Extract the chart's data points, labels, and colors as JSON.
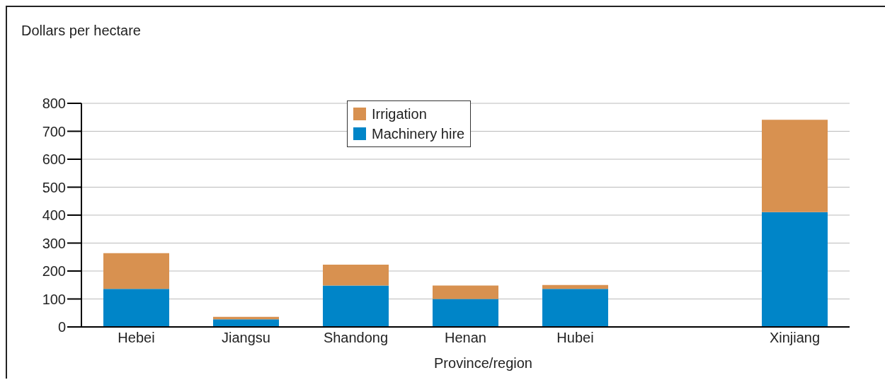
{
  "chart_data": {
    "type": "bar",
    "stacked": true,
    "ylabel": "Dollars per hectare",
    "xlabel": "Province/region",
    "categories": [
      "Hebei",
      "Jiangsu",
      "Shandong",
      "Henan",
      "Hubei",
      null,
      "Xinjiang"
    ],
    "series": [
      {
        "name": "Machinery hire",
        "color": "#0085c8",
        "values": [
          136,
          27,
          148,
          100,
          136,
          null,
          411
        ]
      },
      {
        "name": "Irrigation",
        "color": "#d89150",
        "values": [
          128,
          9,
          75,
          48,
          14,
          null,
          330
        ]
      }
    ],
    "ylim": [
      0,
      800
    ],
    "yticks": [
      0,
      100,
      200,
      300,
      400,
      500,
      600,
      700,
      800
    ],
    "grid": "y",
    "legend": "top"
  }
}
